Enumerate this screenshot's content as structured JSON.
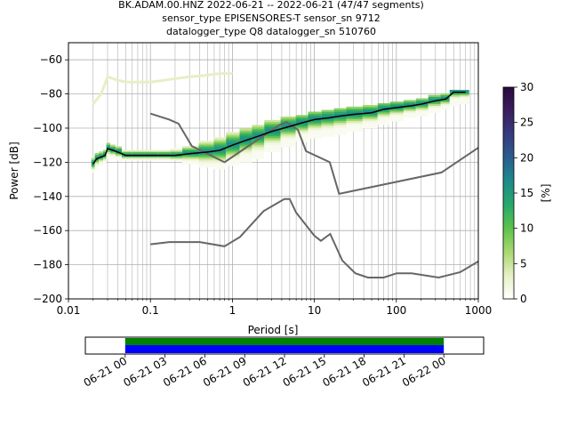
{
  "title_lines": [
    "BK.ADAM.00.HNZ   2022-06-21 -- 2022-06-21  (47/47 segments)",
    "sensor_type EPISENSORES-T sensor_sn 9712",
    "datalogger_type Q8 datalogger_sn 510760"
  ],
  "chart_data": [
    {
      "type": "heatmap",
      "xlabel": "Period [s]",
      "ylabel": "Power [dB]",
      "xscale": "log",
      "xlim": [
        0.01,
        1000
      ],
      "ylim": [
        -200,
        -50
      ],
      "x_ticks": [
        0.01,
        0.1,
        1,
        10,
        100,
        1000
      ],
      "x_tick_labels": [
        "0.01",
        "0.1",
        "1",
        "10",
        "100",
        "1000"
      ],
      "y_ticks": [
        -200,
        -180,
        -160,
        -140,
        -120,
        -100,
        -80,
        -60
      ],
      "y_tick_labels": [
        "−200",
        "−180",
        "−160",
        "−140",
        "−120",
        "−100",
        "−80",
        "−60"
      ],
      "grid": true,
      "colorbar": {
        "label": "[%]",
        "range": [
          0,
          30
        ],
        "ticks": [
          0,
          5,
          10,
          15,
          20,
          25,
          30
        ],
        "tick_labels": [
          "0",
          "5",
          "10",
          "15",
          "20",
          "25",
          "30"
        ],
        "colors": [
          "#ffffff",
          "#e6f0c4",
          "#a8d870",
          "#5ec24a",
          "#26a96a",
          "#1d8a8a",
          "#2a5e8e",
          "#363a7e",
          "#3b1e5e",
          "#2a0a3e"
        ]
      },
      "mode_curve": {
        "x": [
          0.02,
          0.022,
          0.025,
          0.028,
          0.03,
          0.035,
          0.04,
          0.05,
          0.07,
          0.1,
          0.15,
          0.2,
          0.3,
          0.5,
          0.7,
          1,
          1.5,
          2,
          3,
          5,
          7,
          10,
          15,
          20,
          30,
          50,
          70,
          100,
          150,
          200,
          300,
          400,
          500,
          700
        ],
        "y": [
          -121,
          -118,
          -117,
          -116,
          -112,
          -113,
          -114,
          -116,
          -116,
          -116,
          -116,
          -116,
          -115,
          -114,
          -113,
          -110,
          -107,
          -105,
          -102,
          -99,
          -97,
          -95,
          -94,
          -93,
          -92,
          -91,
          -89,
          -88,
          -87,
          -86,
          -84,
          -83,
          -79,
          -79
        ]
      },
      "pdf_band": {
        "x": [
          0.02,
          0.022,
          0.025,
          0.028,
          0.03,
          0.035,
          0.04,
          0.05,
          0.07,
          0.1,
          0.15,
          0.2,
          0.3,
          0.5,
          0.7,
          1,
          1.5,
          2,
          3,
          5,
          7,
          10,
          15,
          20,
          30,
          50,
          70,
          100,
          150,
          200,
          300,
          400,
          500,
          700
        ],
        "low": [
          -126,
          -124,
          -122,
          -121,
          -118,
          -118,
          -119,
          -119,
          -119,
          -119,
          -119,
          -119,
          -121,
          -123,
          -124,
          -122,
          -120,
          -118,
          -114,
          -111,
          -108,
          -106,
          -105,
          -104,
          -102,
          -100,
          -98,
          -96,
          -94,
          -93,
          -91,
          -89,
          -87,
          -86
        ],
        "high": [
          -117,
          -115,
          -114,
          -113,
          -109,
          -110,
          -111,
          -113,
          -113,
          -113,
          -113,
          -112,
          -111,
          -108,
          -106,
          -103,
          -101,
          -99,
          -96,
          -94,
          -93,
          -91,
          -90,
          -89,
          -88,
          -87,
          -86,
          -85,
          -84,
          -83,
          -81,
          -80,
          -78,
          -78
        ]
      },
      "outlier_trace": {
        "x": [
          0.02,
          0.025,
          0.03,
          0.04,
          0.05,
          0.07,
          0.1,
          0.15,
          0.2,
          0.3,
          0.5,
          0.7,
          1
        ],
        "y": [
          -86,
          -80,
          -70,
          -72,
          -73,
          -73,
          -73,
          -72,
          -71,
          -70,
          -69,
          -68,
          -68
        ]
      },
      "noise_models": [
        {
          "x": [
            0.1,
            0.17,
            0.22,
            0.32,
            0.8,
            3.8,
            4.6,
            6.3,
            7.9,
            15.4,
            20,
            354.8,
            1000
          ],
          "y": [
            -91.5,
            -95,
            -97.4,
            -110.5,
            -120,
            -98,
            -96.5,
            -101,
            -113.5,
            -120,
            -138.5,
            -126,
            -111.5
          ]
        },
        {
          "x": [
            0.1,
            0.17,
            0.4,
            0.8,
            1.24,
            2.4,
            4.3,
            5,
            6,
            10,
            12,
            15.6,
            21.9,
            31.6,
            45,
            70,
            101,
            154,
            328,
            600,
            1000
          ],
          "y": [
            -168,
            -166.7,
            -166.7,
            -169.2,
            -163.7,
            -148.6,
            -141.5,
            -141.5,
            -149.5,
            -163,
            -166,
            -162,
            -177.5,
            -185,
            -187.5,
            -187.5,
            -185,
            -185,
            -187.5,
            -184.4,
            -178
          ]
        }
      ]
    },
    {
      "type": "timeline",
      "xlim": [
        "2022-06-20 21:00",
        "2022-06-22 03:00"
      ],
      "x_ticks": [
        "2022-06-21 00:00",
        "2022-06-21 03:00",
        "2022-06-21 06:00",
        "2022-06-21 09:00",
        "2022-06-21 12:00",
        "2022-06-21 15:00",
        "2022-06-21 18:00",
        "2022-06-21 21:00",
        "2022-06-22 00:00"
      ],
      "x_tick_labels": [
        "06-21 00",
        "06-21 03",
        "06-21 06",
        "06-21 09",
        "06-21 12",
        "06-21 15",
        "06-21 18",
        "06-21 21",
        "06-22 00"
      ],
      "bars": [
        {
          "start": "2022-06-21 00:00",
          "end": "2022-06-22 00:00",
          "color": "#008000",
          "row": "top"
        },
        {
          "start": "2022-06-21 00:00",
          "end": "2022-06-22 00:00",
          "color": "#0000ff",
          "row": "bottom"
        }
      ]
    }
  ]
}
